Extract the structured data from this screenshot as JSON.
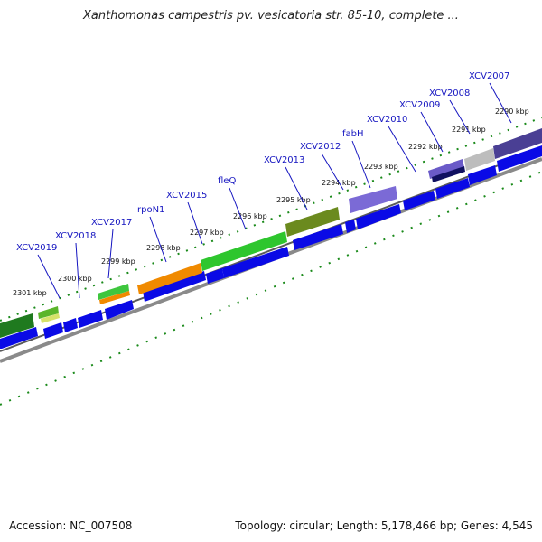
{
  "title": "Xanthomonas campestris pv. vesicatoria str. 85-10, complete ...",
  "footer": {
    "accession": "Accession: NC_007508",
    "summary": "Topology: circular; Length: 5,178,466 bp; Genes: 4,545"
  },
  "colors": {
    "cds_forward": "#0a0ae6",
    "backbone": "#8a8a8a",
    "tick": "#1a8a1a",
    "label": "#1515c0"
  },
  "ruler": [
    {
      "label": "2301 kbp"
    },
    {
      "label": "2300 kbp"
    },
    {
      "label": "2299 kbp"
    },
    {
      "label": "2298 kbp"
    },
    {
      "label": "2297 kbp"
    },
    {
      "label": "2296 kbp"
    },
    {
      "label": "2295 kbp"
    },
    {
      "label": "2294 kbp"
    },
    {
      "label": "2293 kbp"
    },
    {
      "label": "2292 kbp"
    },
    {
      "label": "2291 kbp"
    },
    {
      "label": "2290 kbp"
    }
  ],
  "gene_labels": [
    {
      "label": "XCV2019"
    },
    {
      "label": "XCV2018"
    },
    {
      "label": "XCV2017"
    },
    {
      "label": "rpoN1"
    },
    {
      "label": "XCV2015"
    },
    {
      "label": "fleQ"
    },
    {
      "label": "XCV2013"
    },
    {
      "label": "XCV2012"
    },
    {
      "label": "fabH"
    },
    {
      "label": "XCV2010"
    },
    {
      "label": "XCV2009"
    },
    {
      "label": "XCV2008"
    },
    {
      "label": "XCV2007"
    }
  ]
}
